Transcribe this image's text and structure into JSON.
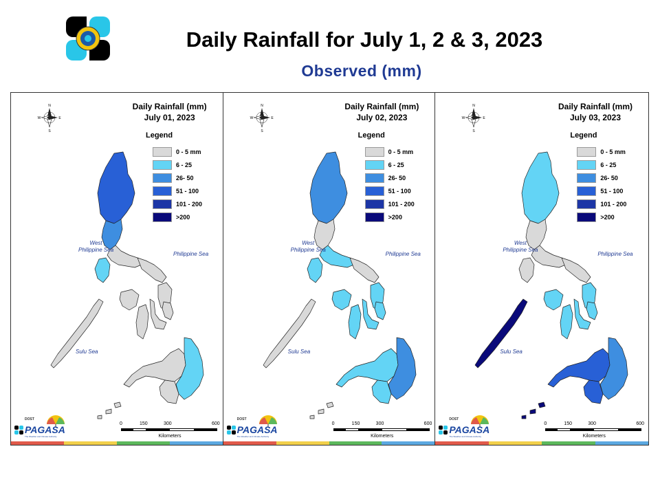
{
  "header": {
    "title": "Daily Rainfall for July 1, 2 & 3, 2023",
    "subtitle": "Observed (mm)"
  },
  "legend": {
    "title": "Legend",
    "classes": [
      {
        "label": "0 - 5 mm",
        "color": "#d9d9d9"
      },
      {
        "label": "6 - 25",
        "color": "#63d4f5"
      },
      {
        "label": "26- 50",
        "color": "#3e8ee0"
      },
      {
        "label": "51 - 100",
        "color": "#2860d6"
      },
      {
        "label": "101 - 200",
        "color": "#1d36a6"
      },
      {
        "label": ">200",
        "color": "#0a0a7a"
      }
    ]
  },
  "labels": {
    "west_sea": "West\nPhilippine Sea",
    "east_sea": "Philippine Sea",
    "sulu_sea": "Sulu Sea",
    "compass": {
      "n": "N",
      "s": "S",
      "e": "E",
      "w": "W"
    },
    "scale_ticks": [
      "0",
      "150",
      "300",
      "600"
    ],
    "scale_unit": "Kilometers",
    "brand": "PAGASA",
    "brand_top": "DOST",
    "brand_sub": "The Weather and Climate Authority"
  },
  "strip_colors": [
    "#e05a4a",
    "#f2d04a",
    "#5cb85c",
    "#5ba8e0"
  ],
  "panels": [
    {
      "heading": "Daily Rainfall (mm)",
      "date": "July 01, 2023",
      "colors": {
        "luzon_north": "#2860d6",
        "luzon_mid": "#3e8ee0",
        "luzon_south": "#d9d9d9",
        "mindoro": "#63d4f5",
        "bicol": "#d9d9d9",
        "visayas": "#d9d9d9",
        "palawan": "#d9d9d9",
        "mindanao_west": "#d9d9d9",
        "mindanao_east": "#63d4f5"
      }
    },
    {
      "heading": "Daily Rainfall (mm)",
      "date": "July 02, 2023",
      "colors": {
        "luzon_north": "#3e8ee0",
        "luzon_mid": "#d9d9d9",
        "luzon_south": "#63d4f5",
        "mindoro": "#63d4f5",
        "bicol": "#d9d9d9",
        "visayas": "#63d4f5",
        "palawan": "#d9d9d9",
        "mindanao_west": "#63d4f5",
        "mindanao_east": "#3e8ee0"
      }
    },
    {
      "heading": "Daily Rainfall (mm)",
      "date": "July 03, 2023",
      "colors": {
        "luzon_north": "#63d4f5",
        "luzon_mid": "#d9d9d9",
        "luzon_south": "#d9d9d9",
        "mindoro": "#d9d9d9",
        "bicol": "#d9d9d9",
        "visayas": "#63d4f5",
        "palawan": "#0a0a7a",
        "mindanao_west": "#2860d6",
        "mindanao_east": "#3e8ee0"
      }
    }
  ]
}
